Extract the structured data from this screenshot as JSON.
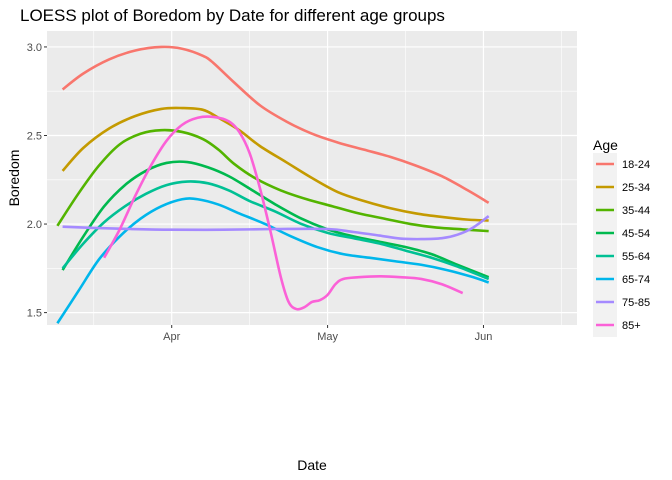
{
  "chart_data": {
    "type": "line",
    "title": "LOESS plot of Boredom by Date for different age groups",
    "xlabel": "Date",
    "ylabel": "Boredom",
    "x_ticks": [
      {
        "label": "Apr",
        "x": 20
      },
      {
        "label": "May",
        "x": 50
      },
      {
        "label": "Jun",
        "x": 80
      }
    ],
    "xlim": [
      -4,
      98
    ],
    "y_ticks": [
      1.5,
      2.0,
      2.5,
      3.0
    ],
    "y_tick_labels": [
      "1.5",
      "2.0",
      "2.5",
      "3.0"
    ],
    "ylim": [
      1.43,
      3.09
    ],
    "legend": {
      "title": "Age",
      "position": "right"
    },
    "series": [
      {
        "name": "18-24",
        "color": "#F8766D",
        "points": [
          [
            -1,
            2.76
          ],
          [
            3,
            2.85
          ],
          [
            8,
            2.93
          ],
          [
            13,
            2.98
          ],
          [
            18,
            3.0
          ],
          [
            22,
            2.99
          ],
          [
            26,
            2.95
          ],
          [
            28,
            2.91
          ],
          [
            32,
            2.8
          ],
          [
            37,
            2.67
          ],
          [
            42,
            2.58
          ],
          [
            47,
            2.51
          ],
          [
            52,
            2.46
          ],
          [
            57,
            2.42
          ],
          [
            62,
            2.38
          ],
          [
            67,
            2.33
          ],
          [
            72,
            2.27
          ],
          [
            77,
            2.19
          ],
          [
            81,
            2.12
          ]
        ]
      },
      {
        "name": "25-34",
        "color": "#C49A00",
        "points": [
          [
            -1,
            2.3
          ],
          [
            3,
            2.43
          ],
          [
            8,
            2.54
          ],
          [
            13,
            2.61
          ],
          [
            18,
            2.65
          ],
          [
            22,
            2.655
          ],
          [
            26,
            2.645
          ],
          [
            29,
            2.6
          ],
          [
            33,
            2.53
          ],
          [
            37,
            2.44
          ],
          [
            42,
            2.35
          ],
          [
            47,
            2.26
          ],
          [
            52,
            2.18
          ],
          [
            57,
            2.13
          ],
          [
            62,
            2.09
          ],
          [
            67,
            2.06
          ],
          [
            72,
            2.04
          ],
          [
            77,
            2.025
          ],
          [
            81,
            2.02
          ]
        ]
      },
      {
        "name": "35-44",
        "color": "#53B400",
        "points": [
          [
            -2,
            1.99
          ],
          [
            2,
            2.17
          ],
          [
            6,
            2.33
          ],
          [
            10,
            2.45
          ],
          [
            14,
            2.51
          ],
          [
            18,
            2.53
          ],
          [
            22,
            2.52
          ],
          [
            26,
            2.48
          ],
          [
            29,
            2.42
          ],
          [
            32,
            2.34
          ],
          [
            36,
            2.26
          ],
          [
            41,
            2.19
          ],
          [
            46,
            2.14
          ],
          [
            51,
            2.1
          ],
          [
            56,
            2.06
          ],
          [
            61,
            2.03
          ],
          [
            66,
            2.0
          ],
          [
            71,
            1.98
          ],
          [
            76,
            1.97
          ],
          [
            81,
            1.96
          ]
        ]
      },
      {
        "name": "45-54",
        "color": "#00B94E",
        "points": [
          [
            -1,
            1.74
          ],
          [
            3,
            1.93
          ],
          [
            7,
            2.1
          ],
          [
            11,
            2.22
          ],
          [
            15,
            2.3
          ],
          [
            19,
            2.345
          ],
          [
            23,
            2.35
          ],
          [
            27,
            2.32
          ],
          [
            31,
            2.27
          ],
          [
            35,
            2.2
          ],
          [
            40,
            2.11
          ],
          [
            45,
            2.03
          ],
          [
            50,
            1.97
          ],
          [
            55,
            1.93
          ],
          [
            60,
            1.9
          ],
          [
            65,
            1.87
          ],
          [
            70,
            1.83
          ],
          [
            75,
            1.77
          ],
          [
            81,
            1.7
          ]
        ]
      },
      {
        "name": "55-64",
        "color": "#00C094",
        "points": [
          [
            -1,
            1.75
          ],
          [
            3,
            1.89
          ],
          [
            7,
            2.01
          ],
          [
            11,
            2.1
          ],
          [
            15,
            2.17
          ],
          [
            19,
            2.22
          ],
          [
            23,
            2.24
          ],
          [
            27,
            2.23
          ],
          [
            31,
            2.19
          ],
          [
            35,
            2.13
          ],
          [
            40,
            2.07
          ],
          [
            45,
            2.0
          ],
          [
            50,
            1.95
          ],
          [
            55,
            1.92
          ],
          [
            60,
            1.89
          ],
          [
            65,
            1.85
          ],
          [
            70,
            1.81
          ],
          [
            75,
            1.76
          ],
          [
            81,
            1.69
          ]
        ]
      },
      {
        "name": "65-74",
        "color": "#00B6EB",
        "points": [
          [
            -2,
            1.44
          ],
          [
            2,
            1.62
          ],
          [
            6,
            1.8
          ],
          [
            10,
            1.93
          ],
          [
            14,
            2.03
          ],
          [
            18,
            2.1
          ],
          [
            22,
            2.14
          ],
          [
            25,
            2.14
          ],
          [
            29,
            2.11
          ],
          [
            33,
            2.06
          ],
          [
            38,
            2.0
          ],
          [
            43,
            1.93
          ],
          [
            48,
            1.87
          ],
          [
            53,
            1.83
          ],
          [
            58,
            1.81
          ],
          [
            63,
            1.79
          ],
          [
            68,
            1.77
          ],
          [
            73,
            1.74
          ],
          [
            78,
            1.7
          ],
          [
            81,
            1.67
          ]
        ]
      },
      {
        "name": "75-85",
        "color": "#A58AFF",
        "points": [
          [
            -1,
            1.985
          ],
          [
            5,
            1.978
          ],
          [
            12,
            1.972
          ],
          [
            20,
            1.968
          ],
          [
            30,
            1.968
          ],
          [
            40,
            1.972
          ],
          [
            50,
            1.972
          ],
          [
            55,
            1.955
          ],
          [
            60,
            1.935
          ],
          [
            64,
            1.918
          ],
          [
            68,
            1.915
          ],
          [
            72,
            1.92
          ],
          [
            75,
            1.94
          ],
          [
            78,
            1.98
          ],
          [
            81,
            2.045
          ]
        ]
      },
      {
        "name": "85+",
        "color": "#FB61D7",
        "points": [
          [
            7,
            1.81
          ],
          [
            10,
            1.97
          ],
          [
            13,
            2.16
          ],
          [
            16,
            2.33
          ],
          [
            19,
            2.47
          ],
          [
            22,
            2.56
          ],
          [
            25,
            2.6
          ],
          [
            28,
            2.605
          ],
          [
            31,
            2.58
          ],
          [
            33,
            2.52
          ],
          [
            35,
            2.4
          ],
          [
            37,
            2.2
          ],
          [
            39,
            1.96
          ],
          [
            41,
            1.7
          ],
          [
            42.5,
            1.56
          ],
          [
            44,
            1.52
          ],
          [
            45.5,
            1.53
          ],
          [
            47,
            1.56
          ],
          [
            48.5,
            1.57
          ],
          [
            50,
            1.6
          ],
          [
            51.5,
            1.66
          ],
          [
            53,
            1.69
          ],
          [
            56,
            1.7
          ],
          [
            60,
            1.705
          ],
          [
            64,
            1.7
          ],
          [
            68,
            1.69
          ],
          [
            72,
            1.66
          ],
          [
            76,
            1.61
          ]
        ]
      }
    ]
  }
}
